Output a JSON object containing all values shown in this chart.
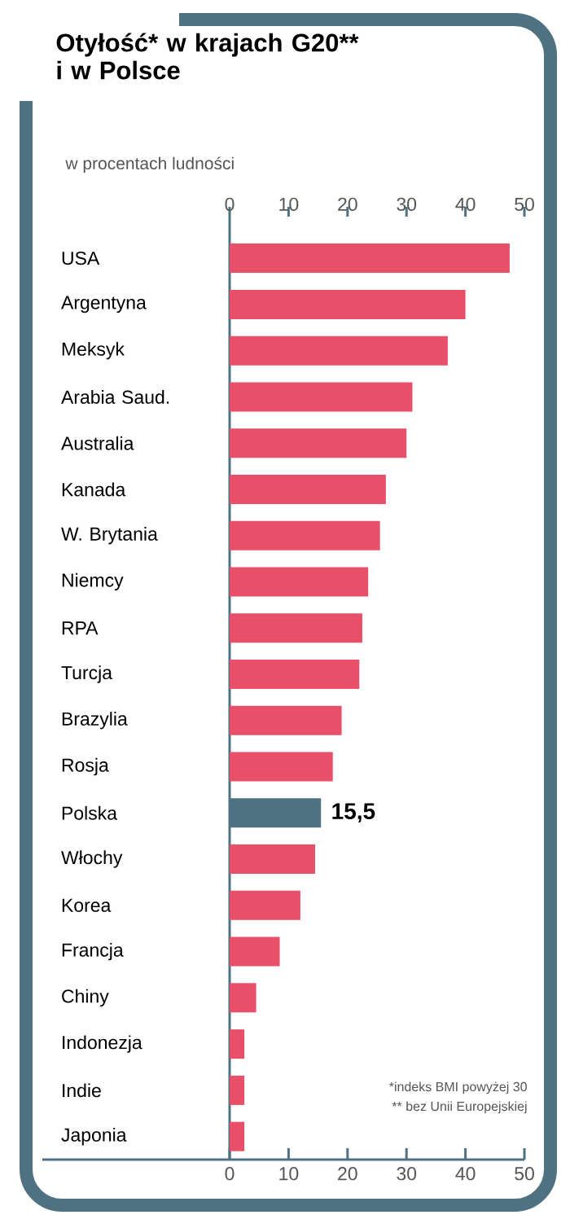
{
  "chart_data": {
    "type": "bar",
    "orientation": "horizontal",
    "title": "Otyłość* w krajach G20** i w Polsce",
    "subtitle": "w procentach ludności",
    "categories": [
      "USA",
      "Argentyna",
      "Meksyk",
      "Arabia Saud.",
      "Australia",
      "Kanada",
      "W. Brytania",
      "Niemcy",
      "RPA",
      "Turcja",
      "Brazylia",
      "Rosja",
      "Polska",
      "Włochy",
      "Korea",
      "Francja",
      "Chiny",
      "Indonezja",
      "Indie",
      "Japonia"
    ],
    "values": [
      47.5,
      40,
      37,
      31,
      30,
      26.5,
      25.5,
      23.5,
      22.5,
      22,
      19,
      17.5,
      15.5,
      14.5,
      12,
      8.5,
      4.5,
      2.5,
      2.5,
      2.5
    ],
    "colors": [
      "#e8506a",
      "#e8506a",
      "#e8506a",
      "#e8506a",
      "#e8506a",
      "#e8506a",
      "#e8506a",
      "#e8506a",
      "#e8506a",
      "#e8506a",
      "#e8506a",
      "#e8506a",
      "#4f7282",
      "#e8506a",
      "#e8506a",
      "#e8506a",
      "#e8506a",
      "#e8506a",
      "#e8506a",
      "#e8506a"
    ],
    "value_labels": [
      null,
      null,
      null,
      null,
      null,
      null,
      null,
      null,
      null,
      null,
      null,
      null,
      "15,5",
      null,
      null,
      null,
      null,
      null,
      null,
      null
    ],
    "xlim": [
      0,
      50
    ],
    "xticks": [
      0,
      10,
      20,
      30,
      40,
      50
    ],
    "x2lim": [
      0,
      50
    ],
    "x2ticks": [
      0,
      10,
      20,
      30,
      40,
      50
    ],
    "annotations": [
      "*indeks BMI powyżej 30",
      "** bez Unii Europejskiej"
    ],
    "grid": false
  }
}
